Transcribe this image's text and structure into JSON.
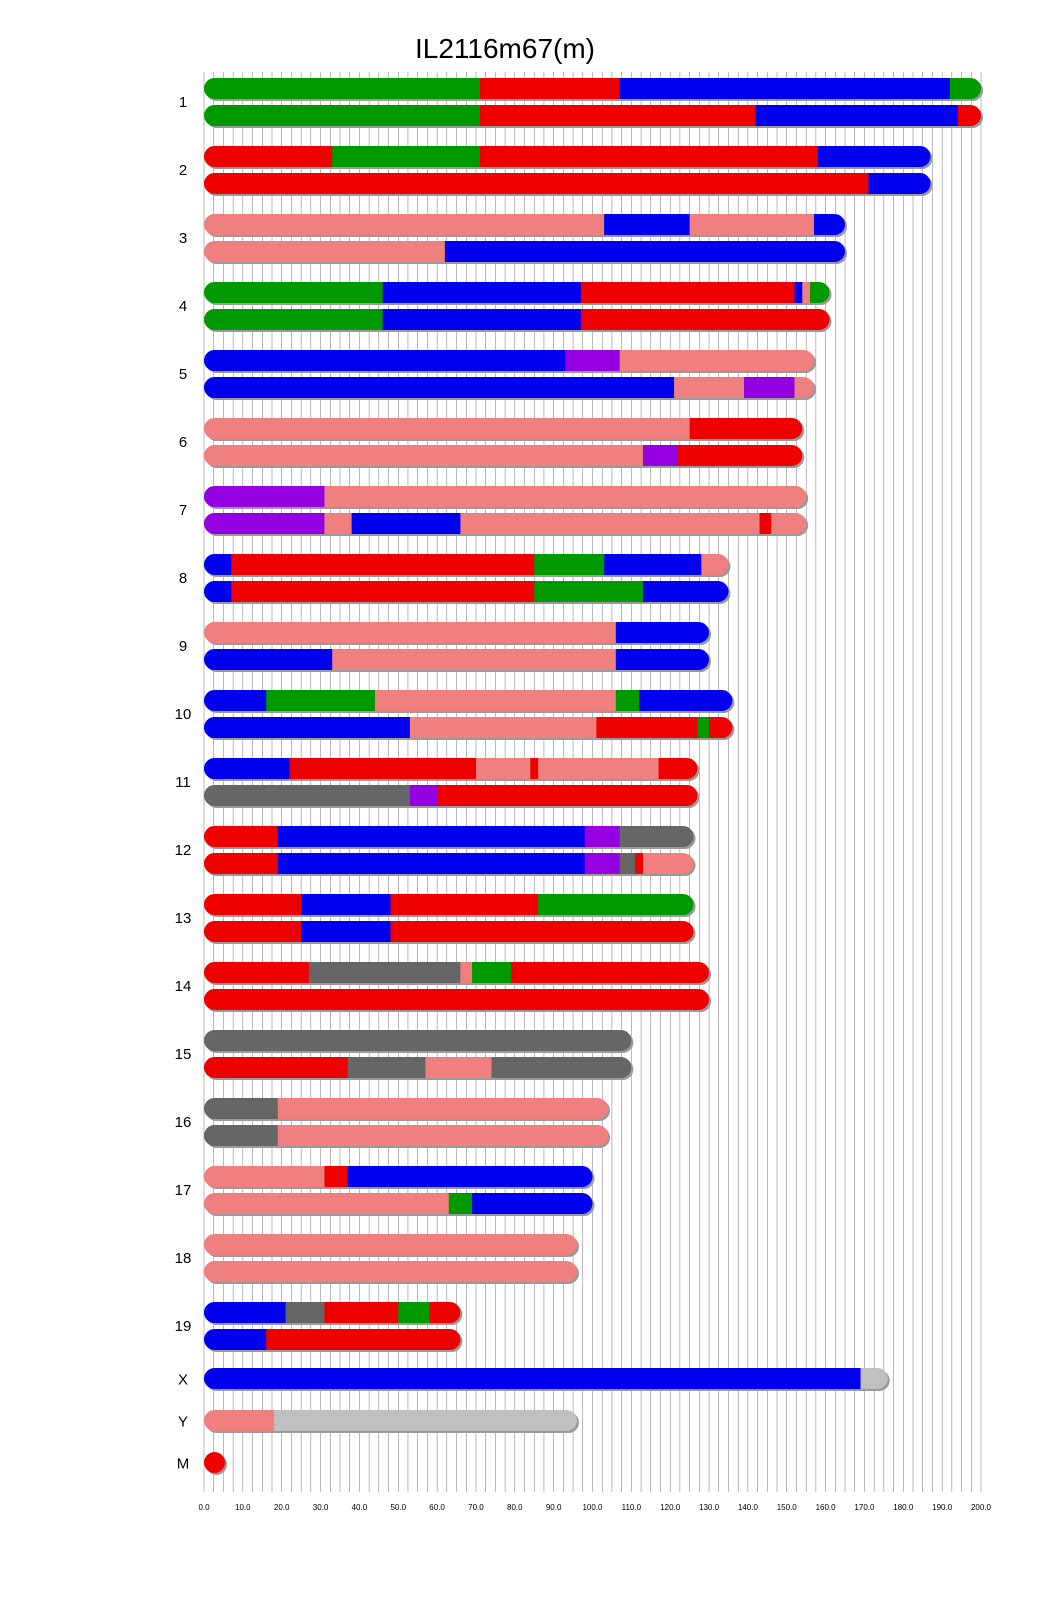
{
  "chart_data": {
    "type": "chromosome-painting",
    "title": "IL2116m67(m)",
    "xlim": [
      0,
      200
    ],
    "xticks": [
      "0.0",
      "10.0",
      "20.0",
      "30.0",
      "40.0",
      "50.0",
      "60.0",
      "70.0",
      "80.0",
      "90.0",
      "100.0",
      "110.0",
      "120.0",
      "130.0",
      "140.0",
      "150.0",
      "160.0",
      "170.0",
      "180.0",
      "190.0",
      "200.0"
    ],
    "grid": "vertical every 2.5",
    "colors": {
      "G": "#009900",
      "R": "#ee0000",
      "B": "#0000ee",
      "P": "#f08080",
      "V": "#9400e0",
      "D": "#666666",
      "L": "#c0c0c0"
    },
    "chromosomes": [
      {
        "label": "1",
        "haplotypes": [
          [
            [
              0,
              71,
              "G"
            ],
            [
              71,
              107,
              "R"
            ],
            [
              107,
              192,
              "B"
            ],
            [
              192,
              200,
              "G"
            ]
          ],
          [
            [
              0,
              71,
              "G"
            ],
            [
              71,
              142,
              "R"
            ],
            [
              142,
              194,
              "B"
            ],
            [
              194,
              200,
              "R"
            ]
          ]
        ]
      },
      {
        "label": "2",
        "haplotypes": [
          [
            [
              0,
              33,
              "R"
            ],
            [
              33,
              71,
              "G"
            ],
            [
              71,
              158,
              "R"
            ],
            [
              158,
              187,
              "B"
            ]
          ],
          [
            [
              0,
              171,
              "R"
            ],
            [
              171,
              187,
              "B"
            ]
          ]
        ]
      },
      {
        "label": "3",
        "haplotypes": [
          [
            [
              0,
              103,
              "P"
            ],
            [
              103,
              125,
              "B"
            ],
            [
              125,
              157,
              "P"
            ],
            [
              157,
              165,
              "B"
            ]
          ],
          [
            [
              0,
              62,
              "P"
            ],
            [
              62,
              165,
              "B"
            ]
          ]
        ]
      },
      {
        "label": "4",
        "haplotypes": [
          [
            [
              0,
              46,
              "G"
            ],
            [
              46,
              97,
              "B"
            ],
            [
              97,
              152,
              "R"
            ],
            [
              152,
              154,
              "B"
            ],
            [
              154,
              156,
              "P"
            ],
            [
              156,
              161,
              "G"
            ]
          ],
          [
            [
              0,
              46,
              "G"
            ],
            [
              46,
              97,
              "B"
            ],
            [
              97,
              161,
              "R"
            ]
          ]
        ]
      },
      {
        "label": "5",
        "haplotypes": [
          [
            [
              0,
              93,
              "B"
            ],
            [
              93,
              107,
              "V"
            ],
            [
              107,
              157,
              "P"
            ]
          ],
          [
            [
              0,
              121,
              "B"
            ],
            [
              121,
              139,
              "P"
            ],
            [
              139,
              152,
              "V"
            ],
            [
              152,
              157,
              "P"
            ]
          ]
        ]
      },
      {
        "label": "6",
        "haplotypes": [
          [
            [
              0,
              125,
              "P"
            ],
            [
              125,
              154,
              "R"
            ]
          ],
          [
            [
              0,
              113,
              "P"
            ],
            [
              113,
              122,
              "V"
            ],
            [
              122,
              154,
              "R"
            ]
          ]
        ]
      },
      {
        "label": "7",
        "haplotypes": [
          [
            [
              0,
              31,
              "V"
            ],
            [
              31,
              155,
              "P"
            ]
          ],
          [
            [
              0,
              31,
              "V"
            ],
            [
              31,
              38,
              "P"
            ],
            [
              38,
              66,
              "B"
            ],
            [
              66,
              143,
              "P"
            ],
            [
              143,
              146,
              "R"
            ],
            [
              146,
              155,
              "P"
            ]
          ]
        ]
      },
      {
        "label": "8",
        "haplotypes": [
          [
            [
              0,
              7,
              "B"
            ],
            [
              7,
              85,
              "R"
            ],
            [
              85,
              103,
              "G"
            ],
            [
              103,
              128,
              "B"
            ],
            [
              128,
              135,
              "P"
            ]
          ],
          [
            [
              0,
              7,
              "B"
            ],
            [
              7,
              85,
              "R"
            ],
            [
              85,
              113,
              "G"
            ],
            [
              113,
              135,
              "B"
            ]
          ]
        ]
      },
      {
        "label": "9",
        "haplotypes": [
          [
            [
              0,
              106,
              "P"
            ],
            [
              106,
              130,
              "B"
            ]
          ],
          [
            [
              0,
              33,
              "B"
            ],
            [
              33,
              106,
              "P"
            ],
            [
              106,
              130,
              "B"
            ]
          ]
        ]
      },
      {
        "label": "10",
        "haplotypes": [
          [
            [
              0,
              16,
              "B"
            ],
            [
              16,
              44,
              "G"
            ],
            [
              44,
              106,
              "P"
            ],
            [
              106,
              112,
              "G"
            ],
            [
              112,
              136,
              "B"
            ]
          ],
          [
            [
              0,
              53,
              "B"
            ],
            [
              53,
              101,
              "P"
            ],
            [
              101,
              127,
              "R"
            ],
            [
              127,
              130,
              "G"
            ],
            [
              130,
              136,
              "R"
            ]
          ]
        ]
      },
      {
        "label": "11",
        "haplotypes": [
          [
            [
              0,
              22,
              "B"
            ],
            [
              22,
              70,
              "R"
            ],
            [
              70,
              84,
              "P"
            ],
            [
              84,
              86,
              "R"
            ],
            [
              86,
              117,
              "P"
            ],
            [
              117,
              127,
              "R"
            ]
          ],
          [
            [
              0,
              53,
              "D"
            ],
            [
              53,
              60,
              "V"
            ],
            [
              60,
              127,
              "R"
            ]
          ]
        ]
      },
      {
        "label": "12",
        "haplotypes": [
          [
            [
              0,
              19,
              "R"
            ],
            [
              19,
              98,
              "B"
            ],
            [
              98,
              107,
              "V"
            ],
            [
              107,
              126,
              "D"
            ]
          ],
          [
            [
              0,
              19,
              "R"
            ],
            [
              19,
              98,
              "B"
            ],
            [
              98,
              107,
              "V"
            ],
            [
              107,
              111,
              "D"
            ],
            [
              111,
              113,
              "R"
            ],
            [
              113,
              126,
              "P"
            ]
          ]
        ]
      },
      {
        "label": "13",
        "haplotypes": [
          [
            [
              0,
              25,
              "R"
            ],
            [
              25,
              48,
              "B"
            ],
            [
              48,
              86,
              "R"
            ],
            [
              86,
              126,
              "G"
            ]
          ],
          [
            [
              0,
              25,
              "R"
            ],
            [
              25,
              48,
              "B"
            ],
            [
              48,
              126,
              "R"
            ]
          ]
        ]
      },
      {
        "label": "14",
        "haplotypes": [
          [
            [
              0,
              27,
              "R"
            ],
            [
              27,
              66,
              "D"
            ],
            [
              66,
              69,
              "P"
            ],
            [
              69,
              79,
              "G"
            ],
            [
              79,
              130,
              "R"
            ]
          ],
          [
            [
              0,
              130,
              "R"
            ]
          ]
        ]
      },
      {
        "label": "15",
        "haplotypes": [
          [
            [
              0,
              110,
              "D"
            ]
          ],
          [
            [
              0,
              37,
              "R"
            ],
            [
              37,
              57,
              "D"
            ],
            [
              57,
              74,
              "P"
            ],
            [
              74,
              110,
              "D"
            ]
          ]
        ]
      },
      {
        "label": "16",
        "haplotypes": [
          [
            [
              0,
              19,
              "D"
            ],
            [
              19,
              104,
              "P"
            ]
          ],
          [
            [
              0,
              19,
              "D"
            ],
            [
              19,
              104,
              "P"
            ]
          ]
        ]
      },
      {
        "label": "17",
        "haplotypes": [
          [
            [
              0,
              31,
              "P"
            ],
            [
              31,
              37,
              "R"
            ],
            [
              37,
              100,
              "B"
            ]
          ],
          [
            [
              0,
              63,
              "P"
            ],
            [
              63,
              69,
              "G"
            ],
            [
              69,
              100,
              "B"
            ]
          ]
        ]
      },
      {
        "label": "18",
        "haplotypes": [
          [
            [
              0,
              96,
              "P"
            ]
          ],
          [
            [
              0,
              96,
              "P"
            ]
          ]
        ]
      },
      {
        "label": "19",
        "haplotypes": [
          [
            [
              0,
              21,
              "B"
            ],
            [
              21,
              31,
              "D"
            ],
            [
              31,
              50,
              "R"
            ],
            [
              50,
              58,
              "G"
            ],
            [
              58,
              66,
              "R"
            ]
          ],
          [
            [
              0,
              16,
              "B"
            ],
            [
              16,
              66,
              "R"
            ]
          ]
        ]
      },
      {
        "label": "X",
        "haplotypes": [
          [
            [
              0,
              169,
              "B"
            ],
            [
              169,
              176,
              "L"
            ]
          ]
        ]
      },
      {
        "label": "Y",
        "haplotypes": [
          [
            [
              0,
              18,
              "P"
            ],
            [
              18,
              96,
              "L"
            ]
          ]
        ]
      },
      {
        "label": "M",
        "haplotypes": [
          [
            [
              0,
              1,
              "R"
            ]
          ]
        ]
      }
    ]
  }
}
